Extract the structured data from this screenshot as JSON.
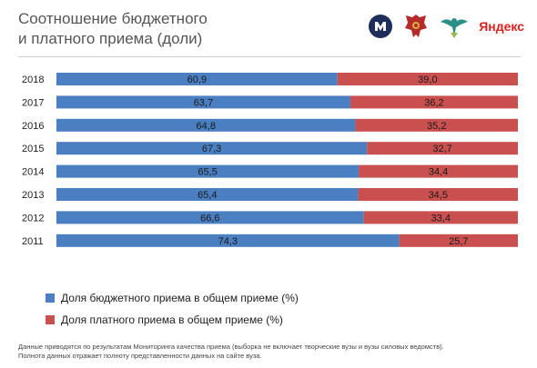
{
  "title": {
    "line1": "Соотношение бюджетного",
    "line2": "и платного приема (доли)"
  },
  "logos": {
    "hse": "hse-logo",
    "emblem": "russia-emblem",
    "ministry": "ministry-emblem",
    "yandex": "Яндекс"
  },
  "colors": {
    "budget": "#4a7fc1",
    "paid": "#c9504f",
    "divider": "#cfcfcf"
  },
  "chart_data": {
    "type": "bar",
    "orientation": "horizontal",
    "stacked": true,
    "categories": [
      "2018",
      "2017",
      "2016",
      "2015",
      "2014",
      "2013",
      "2012",
      "2011"
    ],
    "series": [
      {
        "name": "Доля бюджетного приема в общем приеме (%)",
        "values": [
          60.9,
          63.7,
          64.8,
          67.3,
          65.5,
          65.4,
          66.6,
          74.3
        ]
      },
      {
        "name": "Доля платного приема в общем приеме (%)",
        "values": [
          39.0,
          36.2,
          35.2,
          32.7,
          34.4,
          34.5,
          33.4,
          25.7
        ]
      }
    ],
    "value_labels": [
      [
        "60,9",
        "63,7",
        "64,8",
        "67,3",
        "65,5",
        "65,4",
        "66,6",
        "74,3"
      ],
      [
        "39,0",
        "36,2",
        "35,2",
        "32,7",
        "34,4",
        "34,5",
        "33,4",
        "25,7"
      ]
    ],
    "xlim": [
      0,
      100
    ],
    "grid": false,
    "legend_position": "bottom-left"
  },
  "legend": {
    "budget": "Доля бюджетного приема в общем приеме (%)",
    "paid": "Доля платного приема в общем приеме (%)"
  },
  "footnote": {
    "line1": "Данные приводятся по результатам Мониторинга качества приема (выборка не включает творческие вузы и вузы силовых ведомств).",
    "line2": "Полнота данных отражает полноту представленности данных на сайте вуза."
  }
}
